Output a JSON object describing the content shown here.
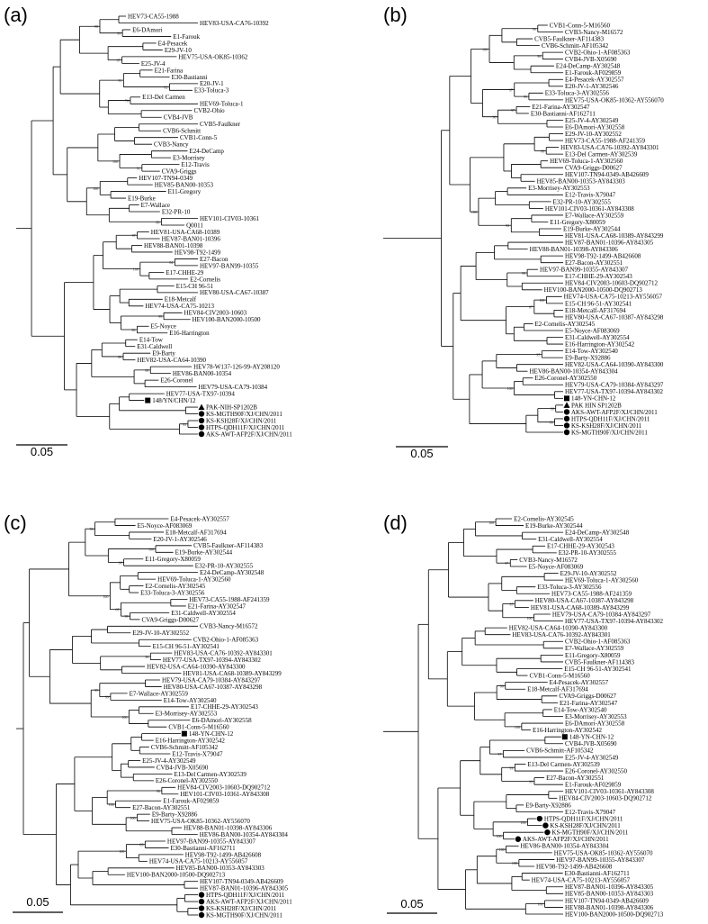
{
  "panels": [
    {
      "label": "(a)",
      "scale": "0.05",
      "leaves": [
        "HEV73-CA55-1988",
        "HEV83-USA-CA76-10392",
        "E6-DAmori",
        "E1-Farouk",
        "E4-Pesacek",
        "E29-JV-10",
        "HEV75-USA-OK85-10362",
        "E25-JV-4",
        "E21-Farina",
        "E30-Bastianni",
        "E20-JV-1",
        "E33-Toluca-3",
        "E13-Del Carmen",
        "HEV69-Toluca-1",
        "CVB2-Ohio",
        "CVB4-JVB",
        "CVB5-Faulkner",
        "CVB6-Schmitt",
        "CVB1-Conn-5",
        "CVB3-Nancy",
        "E24-DeCamp",
        "E3-Morrisey",
        "E12-Travis",
        "CVA9-Griggs",
        "HEV107-TN94-0349",
        "HEV85-BAN00-10353",
        "E11-Gregory",
        "E19-Burke",
        "E7-Wallace",
        "E32-PR-10",
        "HEV101-CIV03-10361",
        "Q0011",
        "HEV81-USA-CA68-10389",
        "HEV87-BAN01-10396",
        "HEV88-BAN01-10398",
        "HEV98-T92-1499",
        "E27-Bacon",
        "HEV97-BAN99-10355",
        "E17-CHHE-29",
        "E2-Cornelis",
        "E15-CH 96-51",
        "HEV80-USA-CA67-10387",
        "E18-Metcalf",
        "HEV74-USA-CA75-10213",
        "HEV84-CIV2003-10603",
        "HEV100-BAN2000-10500",
        "E5-Noyce",
        "E16-Harrington",
        "E14-Tow",
        "E31-Caldwell",
        "E9-Barty",
        "HEV82-USA-CA64-10390",
        "HEV78-W137-126-99-AY208120",
        "HEV86-BAN00-10354",
        "E26-Coronel",
        "HEV79-USA-CA79-10384",
        "HEV77-USA-TX97-10394",
        "148/YN/CHN/12",
        "PAK-NIH-SP1202B",
        "KS-MGTH90F/XJ/CHN/2011",
        "KS-KSH28F/XJ/CHN/2011",
        "HTPS-QDH11F/XJ/CHN/2011",
        "AKS-AWT-AFP2F/XJ/CHN/2011"
      ],
      "markers": {
        "57": "square",
        "58": "triangle",
        "59": "circle",
        "60": "circle",
        "61": "circle",
        "62": "circle"
      },
      "bootstraps": [
        "99",
        "87",
        "82",
        "76",
        "91",
        "88",
        "97",
        "84",
        "99",
        "96",
        "99",
        "99",
        "93",
        "98",
        "91",
        "100",
        "100",
        "100"
      ]
    },
    {
      "label": "(b)",
      "scale": "0.05",
      "leaves": [
        "CVB1-Conn-5-M16560",
        "CVB3-Nancy-M16572",
        "CVB5-Faulkner-AF114383",
        "CVB6-Schmitt-AF105342",
        "CVB2-Ohio-1-AF085363",
        "CVB4-JVB-X05690",
        "E24-DeCamp-AY302548",
        "E1-Farouk-AF029859",
        "E4-Pesacek-AY302557",
        "E20-JV-1-AY302546",
        "E33-Toluca-3-AY302556",
        "HEV75-USA-OK85-10362-AY556070",
        "E21-Farina-AY302547",
        "E30-Bastianni-AF162711",
        "E25-JV-4-AY302549",
        "E6-DAmori-AY302558",
        "E29-JV-10-AY302552",
        "HEV73-CA55-1988-AF241359",
        "HEV83-USA-CA76-10392-AY843301",
        "E13-Del Carmen-AY302539",
        "HEV69-Toluca-1-AY302560",
        "CVA9-Griggs-D00627",
        "HEV107-TN94-0349-AB426609",
        "HEV85-BAN00-10353-AY843303",
        "E3-Morrisey-AY302553",
        "E12-Travis-X79047",
        "E32-PR-10-AY302555",
        "HEV101-CIV03-10361-AY843308",
        "E7-Wallace-AY302559",
        "E11-Gregory-X80059",
        "E19-Burke-AY302544",
        "HEV81-USA-CA68-10389-AY843299",
        "HEV87-BAN01-10396-AY843305",
        "HEV88-BAN01-10398-AY843306",
        "HEV98-T92-1499-AB426608",
        "E27-Bacon-AY302551",
        "HEV97-BAN99-10355-AY843307",
        "E17-CHHE-29-AY302543",
        "HEV84-CIV2003-10603-DQ902712",
        "HEV100-BAN2000-10500-DQ902713",
        "HEV74-USA-CA75-10213-AY556057",
        "E15-CH 96-51-AY302541",
        "E18-Metcalf-AF317694",
        "HEV80-USA-CA67-10387-AY843298",
        "E2-Cornelis-AY302545",
        "E5-Noyce-AF083069",
        "E31-Caldwell-AY302554",
        "E16-Harrington-AY302542",
        "E14-Tow-AY302540",
        "E9-Barty-X92886",
        "HEV82-USA-CA64-10390-AY843300",
        "HEV86-BAN00-10354-AY843304",
        "E26-Coronel-AY302550",
        "HEV79-USA-CA79-10384-AY843297",
        "HEV77-USA-TX97-10394-AY843302",
        "148-YN-CHN-12",
        "PAK HIN SP1202B",
        "AKS-AWT-AFP2F/XJ/CHN/2011",
        "HTPS-QDH11F/XJ/CHN/2011",
        "KS-KSH28F/XJ/CHN/2011",
        "KS-MGTH90F/XJ/CHN/2011"
      ],
      "markers": {
        "55": "square",
        "56": "triangle",
        "57": "circle",
        "58": "circle",
        "59": "circle",
        "60": "circle"
      },
      "bootstraps": [
        "99",
        "98",
        "99",
        "97",
        "88",
        "99",
        "100",
        "95",
        "98",
        "96",
        "97",
        "98",
        "93",
        "87",
        "100",
        "100",
        "100"
      ]
    },
    {
      "label": "(c)",
      "scale": "0.05",
      "leaves": [
        "E4-Pesacek-AY302557",
        "E5-Noyce-AF083069",
        "E18-Metcalf-AF317694",
        "E20-JV-1-AY302546",
        "CVB5-Faulkner-AF114383",
        "E19-Burke-AY302544",
        "E11-Gregory-X80059",
        "E32-PR-10-AY302555",
        "E24-DeCamp-AY302548",
        "HEV69-Toluca-1-AY302560",
        "E2-Cornelis-AY302545",
        "E33-Toluca-3-AY302556",
        "HEV73-CA55-1988-AF241359",
        "E21-Farina-AY302547",
        "E31-Caldwell-AY302554",
        "CVA9-Griggs-D00627",
        "CVB3-Nancy-M16572",
        "E29-JV-10-AY302552",
        "CVB2-Ohio-1-AF085363",
        "E15-CH 96-51-AY302541",
        "HEV83-USA-CA76-10392-AY843301",
        "HEV77-USA-TX97-10394-AY843302",
        "HEV82-USA-CA64-10390-AY843300",
        "HEV81-USA-CA68-10389-AY843299",
        "HEV79-USA-CA79-10384-AY843297",
        "HEV80-USA-CA67-10387-AY843298",
        "E7-Wallace-AY302559",
        "E14-Tow-AY302540",
        "E17-CHHE-29-AY302543",
        "E3-Morrisey-AY302553",
        "E6-DAmori-AY302558",
        "CVB1-Conn-5-M16560",
        "148-YN-CHN-12",
        "E16-Harrington-AY302542",
        "CVB6-Schmitt-AF105342",
        "E12-Travis-X79047",
        "E25-JV-4-AY302549",
        "CVB4-JVB-X05690",
        "E13-Del Carmen-AY302539",
        "E26-Coronel-AY302550",
        "HEV84-CIV2003-10603-DQ902712",
        "HEV101-CIV03-10361-AY843308",
        "E1-Farouk-AF029859",
        "E27-Bacon-AY302551",
        "E9-Barty-X92886",
        "HEV75-USA-OK85-10362-AY556070",
        "HEV88-BAN01-10398-AY843306",
        "HEV86-BAN00-10354-AY843304",
        "HEV97-BAN99-10355-AY843307",
        "E30-Bastianni-AF162711",
        "HEV98-T92-1499-AB426608",
        "HEV74-USA-CA75-10213-AY556057",
        "HEV85-BAN00-10353-AY843303",
        "HEV100-BAN2000-10500-DQ902713",
        "HEV107-TN94-0349-AB426609",
        "HEV87-BAN01-10396-AY843305",
        "HTPS-QDH11F/XJ/CHN/2011",
        "AKS-AWT-AFP2F/XJ/CHN/2011",
        "KS-KSH28F/XJ/CHN/2011",
        "KS-MGTH90F/XJ/CHN/2011"
      ],
      "markers": {
        "32": "square",
        "56": "circle",
        "57": "circle",
        "58": "circle",
        "59": "circle"
      },
      "bootstraps": [
        "100",
        "98",
        "99",
        "98",
        "99",
        "96",
        "100",
        "100",
        "85",
        "93",
        "87",
        "95",
        "100",
        "100",
        "100"
      ]
    },
    {
      "label": "(d)",
      "scale": "0.05",
      "leaves": [
        "E2-Cornelis-AY302545",
        "E19-Burke-AY302544",
        "E24-DeCamp-AY302548",
        "E31-Caldwell-AY302554",
        "E17-CHHE-29-AY302543",
        "E32-PR-10-AY302555",
        "CVB3-Nancy-M16572",
        "E5-Noyce-AF083069",
        "E29-JV-10-AY302552",
        "HEV69-Toluca-1-AY302560",
        "E33-Toluca-3-AY302556",
        "HEV73-CA55-1988-AF241359",
        "HEV80-USA-CA67-10387-AY843298",
        "HEV81-USA-CA68-10389-AY843299",
        "HEV79-USA-CA79-10384-AY843297",
        "HEV77-USA-TX97-10394-AY843302",
        "HEV82-USA-CA64-10390-AY843300",
        "HEV83-USA-CA76-10392-AY843301",
        "CVB2-Ohio-1-AF085363",
        "E7-Wallace-AY302559",
        "E11-Gregory-X80059",
        "CVB5-Faulkner-AF114383",
        "E15-CH 96-51-AY302541",
        "CVB1-Conn-5-M16560",
        "E4-Pesacek-AY302557",
        "E18-Metcalf-AF317694",
        "CVA9-Griggs-D00627",
        "E21-Farina-AY302547",
        "E14-Tow-AY302540",
        "E3-Morrisey-AY302553",
        "E6-DAmori-AY302558",
        "E16-Harrington-AY302542",
        "148-YN-CHN-12",
        "CVB4-JVB-X05690",
        "CVB6-Schmitt-AF105342",
        "E25-JV-4-AY302549",
        "E13-Del Carmen-AY302539",
        "E26-Coronel-AY302550",
        "E27-Bacon-AY302551",
        "E1-Farouk-AF029859",
        "HEV101-CIV03-10361-AY843308",
        "HEV84-CIV2003-10603-DQ902712",
        "E9-Barty-X92886",
        "E12-Travis-X79047",
        "HTPS-QDH11F/XJ/CHN/2011",
        "KS-KSH28F/XJ/CHN/2011",
        "KS-MGTH90F/XJ/CHN/2011",
        "AKS-AWT-AFP2F/XJ/CHN/2011",
        "HEV86-BAN00-10354-AY843304",
        "HEV75-USA-OK85-10362-AY556070",
        "HEV97-BAN99-10355-AY843307",
        "HEV98-T92-1499-AB426608",
        "E30-Bastianni-AF162711",
        "HEV74-USA-CA75-10213-AY556057",
        "HEV87-BAN01-10396-AY843305",
        "HEV85-BAN00-10353-AY843303",
        "HEV107-TN94-0349-AB426609",
        "HEV88-BAN01-10398-AY843306",
        "HEV100-BAN2000-10500-DQ902713"
      ],
      "markers": {
        "32": "square",
        "44": "circle",
        "45": "circle",
        "46": "circle",
        "47": "circle"
      },
      "bootstraps": [
        "100",
        "97",
        "95",
        "100",
        "99",
        "100",
        "97",
        "93",
        "99",
        "100",
        "100",
        "100",
        "100",
        "100"
      ]
    }
  ]
}
